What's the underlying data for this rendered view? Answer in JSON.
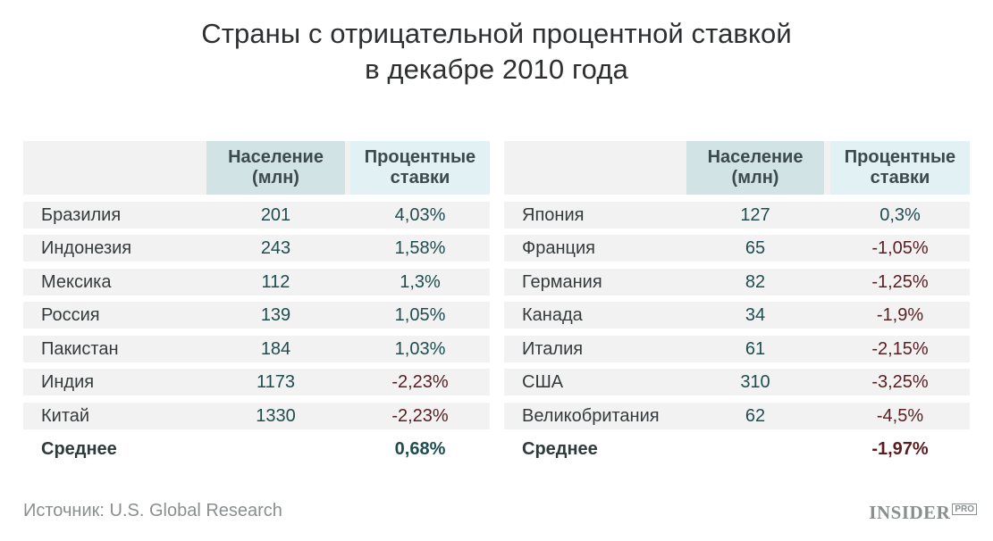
{
  "title": {
    "line1": "Страны с отрицательной процентной ставкой",
    "line2": "в декабре 2010 года"
  },
  "headers": {
    "population_line1": "Население",
    "population_line2": "(млн)",
    "rate_line1": "Процентные",
    "rate_line2": "ставки"
  },
  "left_table": {
    "rows": [
      {
        "country": "Бразилия",
        "population": "201",
        "rate": "4,03%",
        "negative": false
      },
      {
        "country": "Индонезия",
        "population": "243",
        "rate": "1,58%",
        "negative": false
      },
      {
        "country": "Мексика",
        "population": "112",
        "rate": "1,3%",
        "negative": false
      },
      {
        "country": "Россия",
        "population": "139",
        "rate": "1,05%",
        "negative": false
      },
      {
        "country": "Пакистан",
        "population": "184",
        "rate": "1,03%",
        "negative": false
      },
      {
        "country": "Индия",
        "population": "1173",
        "rate": "-2,23%",
        "negative": true
      },
      {
        "country": "Китай",
        "population": "1330",
        "rate": "-2,23%",
        "negative": true
      }
    ],
    "average_label": "Среднее",
    "average_value": "0,68%",
    "average_negative": false
  },
  "right_table": {
    "rows": [
      {
        "country": "Япония",
        "population": "127",
        "rate": "0,3%",
        "negative": false
      },
      {
        "country": "Франция",
        "population": "65",
        "rate": "-1,05%",
        "negative": true
      },
      {
        "country": "Германия",
        "population": "82",
        "rate": "-1,25%",
        "negative": true
      },
      {
        "country": "Канада",
        "population": "34",
        "rate": "-1,9%",
        "negative": true
      },
      {
        "country": "Италия",
        "population": "61",
        "rate": "-2,15%",
        "negative": true
      },
      {
        "country": "США",
        "population": "310",
        "rate": "-3,25%",
        "negative": true
      },
      {
        "country": "Великобритания",
        "population": "62",
        "rate": "-4,5%",
        "negative": true
      }
    ],
    "average_label": "Среднее",
    "average_value": "-1,97%",
    "average_negative": true
  },
  "source": "Источник: U.S. Global Research",
  "logo": {
    "main": "INSIDER",
    "sup": "PRO"
  },
  "colors": {
    "positive_value": "#1f4d4f",
    "negative_value": "#5a1e22",
    "population_header_bg": "#d2e3e6",
    "rate_header_bg": "#e2f1f4",
    "row_bg": "#f2f2f2"
  }
}
